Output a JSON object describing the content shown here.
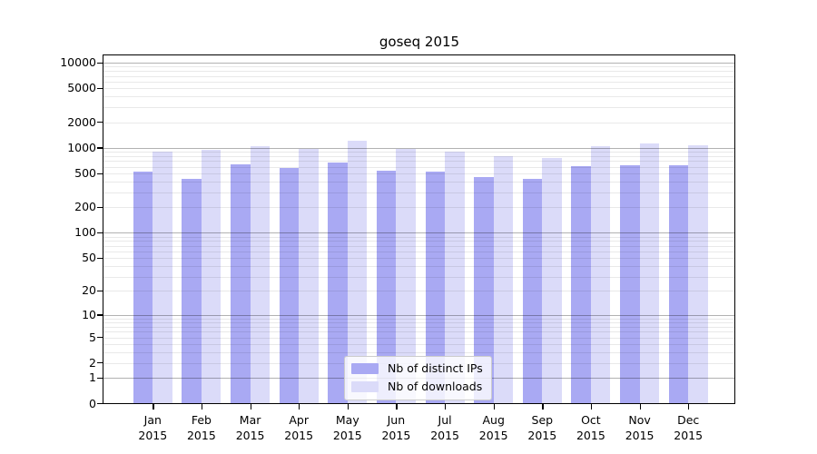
{
  "chart_data": {
    "type": "bar",
    "title": "goseq 2015",
    "x_labels": [
      {
        "month": "Jan",
        "year": "2015"
      },
      {
        "month": "Feb",
        "year": "2015"
      },
      {
        "month": "Mar",
        "year": "2015"
      },
      {
        "month": "Apr",
        "year": "2015"
      },
      {
        "month": "May",
        "year": "2015"
      },
      {
        "month": "Jun",
        "year": "2015"
      },
      {
        "month": "Jul",
        "year": "2015"
      },
      {
        "month": "Aug",
        "year": "2015"
      },
      {
        "month": "Sep",
        "year": "2015"
      },
      {
        "month": "Oct",
        "year": "2015"
      },
      {
        "month": "Nov",
        "year": "2015"
      },
      {
        "month": "Dec",
        "year": "2015"
      }
    ],
    "series": [
      {
        "name": "Nb of distinct IPs",
        "key": "distinct-ips",
        "color": "#a9a9f3",
        "values": [
          525,
          428,
          638,
          589,
          670,
          535,
          521,
          453,
          428,
          612,
          628,
          622
        ]
      },
      {
        "name": "Nb of downloads",
        "key": "downloads",
        "color": "#dbdbf9",
        "values": [
          900,
          962,
          1042,
          965,
          1205,
          980,
          915,
          800,
          765,
          1060,
          1130,
          1070
        ]
      }
    ],
    "y_ticks": [
      "10000",
      "5000",
      "2000",
      "1000",
      "500",
      "200",
      "100",
      "50",
      "20",
      "10",
      "5",
      "2",
      "1",
      "0"
    ],
    "y_scale": "log10(value+1)",
    "ylim": [
      0,
      10000
    ],
    "grid": true,
    "legend_position": "inside-bottom-center",
    "colors": {
      "bar_primary": "#a9a9f3",
      "bar_secondary": "#dbdbf9",
      "grid_major": "#b3b3b3",
      "grid_minor": "#e9e9e9",
      "spine": "#000000",
      "text": "#111111",
      "legend_border": "#cccccc"
    }
  }
}
